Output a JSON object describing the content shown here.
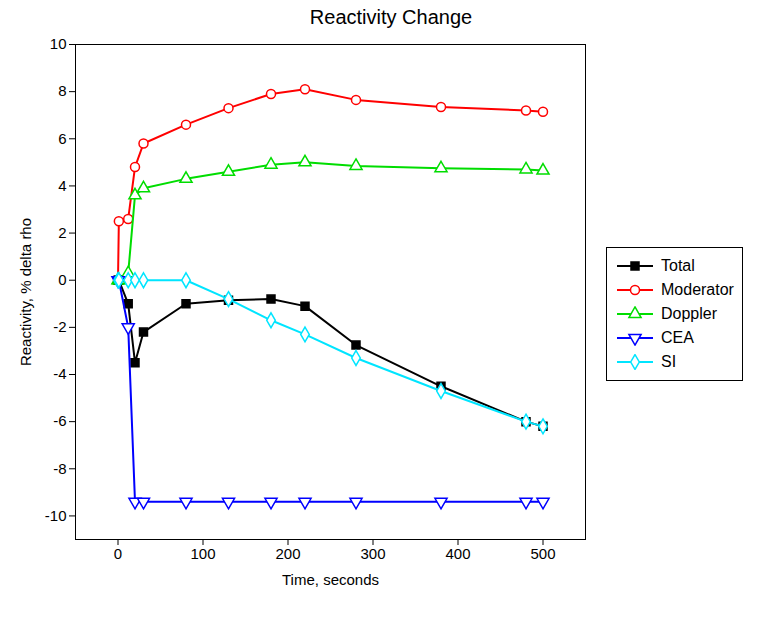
{
  "chart_data": {
    "type": "line",
    "title": "Reactivity Change",
    "x_label": "Time, seconds",
    "y_label": "Reactivity, % delta rho",
    "x": [
      0,
      1,
      12,
      20,
      30,
      80,
      130,
      180,
      220,
      280,
      380,
      480,
      500
    ],
    "series": [
      {
        "name": "Total",
        "color": "#000000",
        "marker": "filled square",
        "values": [
          0,
          0,
          -1,
          -3.5,
          -2.2,
          -1.0,
          -0.85,
          -0.8,
          -1.1,
          -2.75,
          -4.5,
          -6.0,
          -6.2
        ]
      },
      {
        "name": "Moderator",
        "color": "#ff0000",
        "marker": "open circle",
        "values": [
          0,
          2.5,
          2.6,
          4.8,
          5.8,
          6.6,
          7.3,
          7.9,
          8.1,
          7.65,
          7.35,
          7.2,
          7.15
        ]
      },
      {
        "name": "Doppler",
        "color": "#00dd00",
        "marker": "open triangle",
        "values": [
          0,
          0,
          0.3,
          3.6,
          3.9,
          4.3,
          4.6,
          4.9,
          5.0,
          4.85,
          4.75,
          4.7,
          4.65
        ]
      },
      {
        "name": "CEA",
        "color": "#0000ff",
        "marker": "open triangle-down",
        "values": [
          0,
          0,
          -2,
          -9.4,
          -9.4,
          -9.4,
          -9.4,
          -9.4,
          -9.4,
          -9.4,
          -9.4,
          -9.4,
          -9.4
        ]
      },
      {
        "name": "SI",
        "color": "#00e5ff",
        "marker": "open diamond",
        "values": [
          0,
          0,
          0,
          0,
          0,
          0,
          -0.8,
          -1.7,
          -2.3,
          -3.3,
          -4.7,
          -6.0,
          -6.2
        ]
      }
    ],
    "xlim": [
      -50,
      550
    ],
    "xticks": [
      0,
      100,
      200,
      300,
      400,
      500
    ],
    "ylim": [
      -11,
      10
    ],
    "yticks": [
      -10,
      -8,
      -6,
      -4,
      -2,
      0,
      2,
      4,
      6,
      8,
      10
    ],
    "legend": "right",
    "grid": false
  }
}
